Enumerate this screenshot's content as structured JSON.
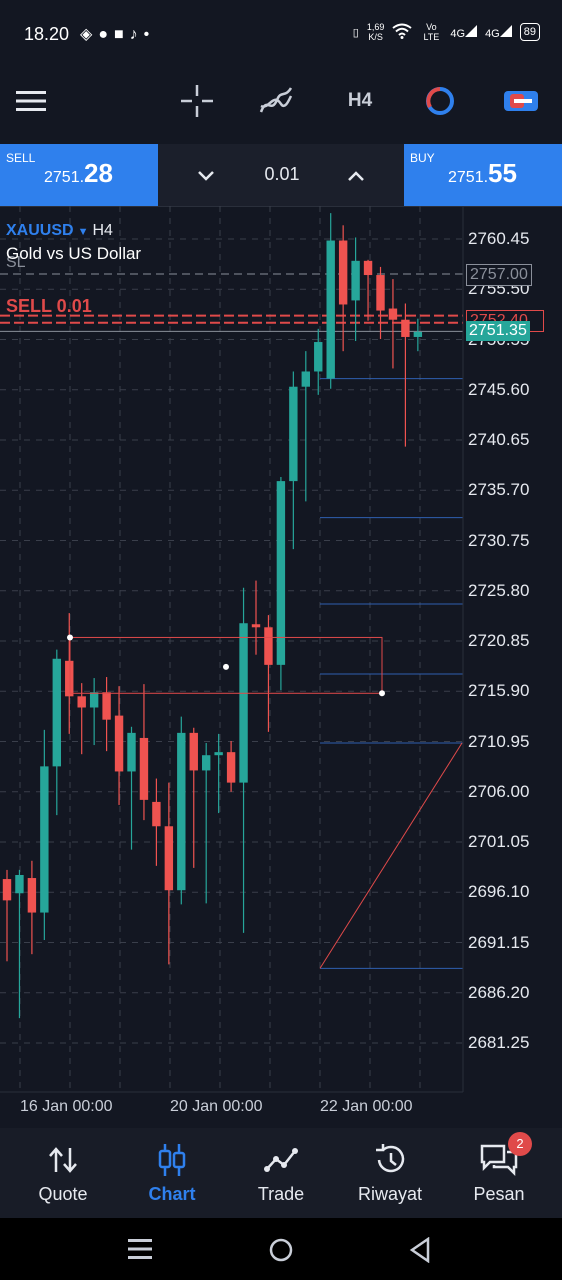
{
  "status_bar": {
    "time": "18.20",
    "left_icons": [
      "game-icon",
      "chat-icon",
      "square-icon",
      "tiktok-icon",
      "dot-icon"
    ],
    "speed_value": "1,69",
    "speed_unit": "K/S",
    "network_label_1": "Vo LTE",
    "network_label_2": "4G",
    "network_label_3": "4G",
    "battery": "89"
  },
  "toolbar": {
    "menu_icon": "hamburger-icon",
    "crosshair_icon": "crosshair-icon",
    "indicators_icon": "indicators-icon",
    "timeframe": "H4",
    "objects_icon": "clock-cycle-icon",
    "trade_toggle_icon": "toggle-icon"
  },
  "trade_bar": {
    "sell_label": "SELL",
    "sell_price_small": "2751.",
    "sell_price_big": "28",
    "lot": "0.01",
    "buy_label": "BUY",
    "buy_price_small": "2751.",
    "buy_price_big": "55"
  },
  "chart": {
    "symbol": "XAUUSD",
    "timeframe": "H4",
    "description": "Gold vs US Dollar",
    "sl_label": "SL",
    "order_label": "SELL 0.01",
    "stop_loss_tag": "2757.00",
    "order_tag": "2752.40",
    "current_price_tag": "2751.35",
    "colors": {
      "bull": "#26a69a",
      "bear": "#ef5350",
      "accent": "#2f80ed",
      "order": "#e04a4a"
    }
  },
  "chart_data": {
    "type": "candlestick",
    "y_ticks": [
      "2760.45",
      "2755.50",
      "2750.55",
      "2745.60",
      "2740.65",
      "2735.70",
      "2730.75",
      "2725.80",
      "2720.85",
      "2715.90",
      "2710.95",
      "2706.00",
      "2701.05",
      "2696.10",
      "2691.15",
      "2686.20",
      "2681.25"
    ],
    "ylim": [
      2677.5,
      2763.5
    ],
    "x_ticks": [
      "16 Jan 00:00",
      "20 Jan 00:00",
      "22 Jan 00:00"
    ],
    "candles": [
      {
        "o": 2697.4,
        "h": 2698.3,
        "l": 2689.3,
        "c": 2695.3
      },
      {
        "o": 2696.0,
        "h": 2698.3,
        "l": 2683.7,
        "c": 2697.8
      },
      {
        "o": 2697.5,
        "h": 2699.2,
        "l": 2690.0,
        "c": 2694.1
      },
      {
        "o": 2694.1,
        "h": 2712.1,
        "l": 2691.4,
        "c": 2708.5
      },
      {
        "o": 2708.5,
        "h": 2720.0,
        "l": 2703.7,
        "c": 2719.1
      },
      {
        "o": 2718.9,
        "h": 2723.6,
        "l": 2711.7,
        "c": 2715.4
      },
      {
        "o": 2715.4,
        "h": 2716.7,
        "l": 2709.7,
        "c": 2714.3
      },
      {
        "o": 2714.3,
        "h": 2717.2,
        "l": 2710.6,
        "c": 2715.8
      },
      {
        "o": 2715.8,
        "h": 2717.3,
        "l": 2710.0,
        "c": 2713.1
      },
      {
        "o": 2713.5,
        "h": 2716.4,
        "l": 2704.7,
        "c": 2708.0
      },
      {
        "o": 2708.0,
        "h": 2712.4,
        "l": 2700.3,
        "c": 2711.8
      },
      {
        "o": 2711.3,
        "h": 2716.6,
        "l": 2703.2,
        "c": 2705.2
      },
      {
        "o": 2705.0,
        "h": 2707.3,
        "l": 2698.7,
        "c": 2702.6
      },
      {
        "o": 2702.6,
        "h": 2706.9,
        "l": 2689.0,
        "c": 2696.3
      },
      {
        "o": 2696.3,
        "h": 2713.4,
        "l": 2694.9,
        "c": 2711.8
      },
      {
        "o": 2711.8,
        "h": 2712.3,
        "l": 2698.5,
        "c": 2708.1
      },
      {
        "o": 2708.1,
        "h": 2710.8,
        "l": 2695.0,
        "c": 2709.6
      },
      {
        "o": 2709.6,
        "h": 2711.7,
        "l": 2703.9,
        "c": 2709.9
      },
      {
        "o": 2709.9,
        "h": 2711.0,
        "l": 2706.0,
        "c": 2706.9
      },
      {
        "o": 2706.9,
        "h": 2726.1,
        "l": 2692.1,
        "c": 2722.6
      },
      {
        "o": 2722.5,
        "h": 2726.8,
        "l": 2719.5,
        "c": 2722.2
      },
      {
        "o": 2722.2,
        "h": 2723.4,
        "l": 2711.9,
        "c": 2718.5
      },
      {
        "o": 2718.5,
        "h": 2737.0,
        "l": 2716.0,
        "c": 2736.6
      },
      {
        "o": 2736.6,
        "h": 2747.4,
        "l": 2729.9,
        "c": 2745.9
      },
      {
        "o": 2745.9,
        "h": 2749.4,
        "l": 2734.6,
        "c": 2747.4
      },
      {
        "o": 2747.4,
        "h": 2751.6,
        "l": 2745.1,
        "c": 2750.3
      },
      {
        "o": 2746.7,
        "h": 2763.0,
        "l": 2745.7,
        "c": 2760.3
      },
      {
        "o": 2760.3,
        "h": 2761.8,
        "l": 2749.4,
        "c": 2754.0
      },
      {
        "o": 2754.4,
        "h": 2760.6,
        "l": 2750.4,
        "c": 2758.3
      },
      {
        "o": 2758.3,
        "h": 2758.4,
        "l": 2752.4,
        "c": 2756.9
      },
      {
        "o": 2756.9,
        "h": 2757.7,
        "l": 2750.6,
        "c": 2753.4
      },
      {
        "o": 2753.6,
        "h": 2756.5,
        "l": 2747.7,
        "c": 2752.5
      },
      {
        "o": 2752.5,
        "h": 2754.1,
        "l": 2740.0,
        "c": 2750.8
      },
      {
        "o": 2750.8,
        "h": 2752.6,
        "l": 2749.4,
        "c": 2751.3
      }
    ],
    "fibo_levels": [
      2746.7,
      2733.0,
      2724.5,
      2717.6,
      2710.8,
      2688.6
    ],
    "grid": true
  },
  "bottom_nav": {
    "items": [
      {
        "label": "Quote",
        "icon": "updown-arrows-icon"
      },
      {
        "label": "Chart",
        "icon": "candles-icon"
      },
      {
        "label": "Trade",
        "icon": "trend-icon"
      },
      {
        "label": "Riwayat",
        "icon": "history-icon"
      },
      {
        "label": "Pesan",
        "icon": "messages-icon"
      }
    ],
    "badge": "2"
  },
  "system_nav": {
    "recent_icon": "recent-apps-icon",
    "home_icon": "home-icon",
    "back_icon": "back-icon"
  }
}
